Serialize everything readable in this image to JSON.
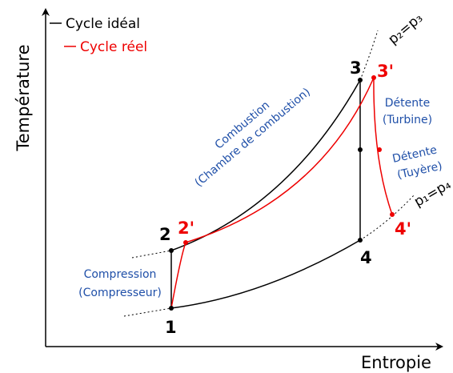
{
  "axes": {
    "y_label": "Température",
    "x_label": "Entropie"
  },
  "legend": [
    "Cycle idéal",
    "Cycle réel"
  ],
  "points": [
    "1",
    "2",
    "3",
    "4",
    "2'",
    "3'",
    "4'"
  ],
  "processes": {
    "combustion": [
      "Combustion",
      "(Chambre de combustion)"
    ],
    "turbine": [
      "Détente",
      "(Turbine)"
    ],
    "nozzle": [
      "Détente",
      "(Tuyère)"
    ],
    "compression": [
      "Compression",
      "(Compresseur)"
    ]
  },
  "isobars": [
    "p₂=p₃",
    "p₁=p₄"
  ]
}
